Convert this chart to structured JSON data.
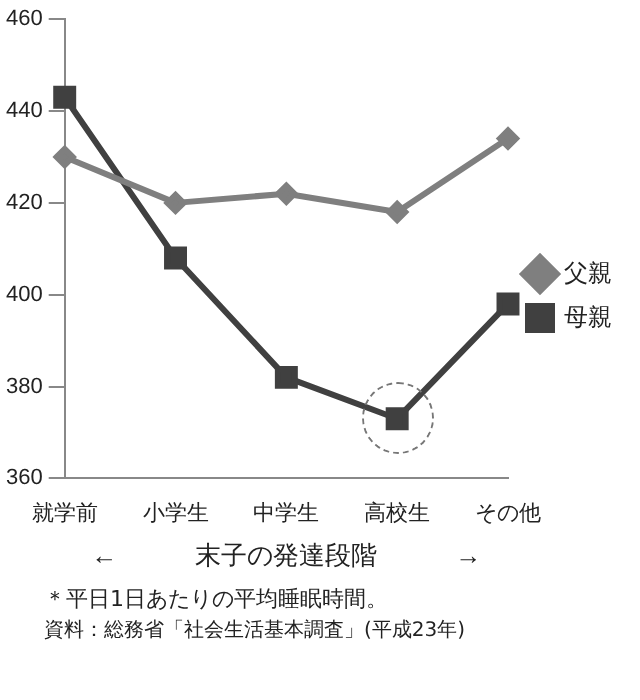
{
  "chart_data": {
    "type": "line",
    "xlabel": "←　　　末子の発達段階　　　→",
    "categories": [
      "就学前",
      "小学生",
      "中学生",
      "高校生",
      "その他"
    ],
    "series": [
      {
        "name": "父親",
        "color": "#7f7f7f",
        "values": [
          430,
          420,
          422,
          418,
          434
        ],
        "marker": "diamond"
      },
      {
        "name": "母親",
        "color": "#404040",
        "values": [
          443,
          408,
          382,
          373,
          398
        ],
        "marker": "square"
      }
    ],
    "ylim": [
      360,
      460
    ],
    "yticks": [
      360,
      380,
      400,
      420,
      440,
      460
    ],
    "grid": false,
    "legend": "right",
    "annotations": [
      "＊平日1日あたりの平均睡眠時間。",
      "資料：総務省「社会生活基本調査」(平成23年)"
    ]
  }
}
